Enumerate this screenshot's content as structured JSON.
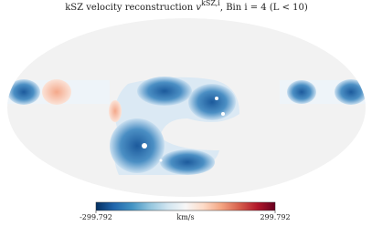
{
  "title": "kSZ velocity reconstruction",
  "title_symbol": "v",
  "title_superscript": "kSZ,i",
  "title_suffix": ", Bin i = 4 (L < 10)",
  "colorbar": {
    "label": "km/s",
    "lim": [
      -299.792,
      299.792
    ],
    "ticks": [
      -299.792,
      299.792
    ],
    "colors": [
      "#053061",
      "#2166ac",
      "#4393c3",
      "#92c5de",
      "#d1e5f0",
      "#f7f7f7",
      "#fddbc7",
      "#f4a582",
      "#d6604d",
      "#b2182b",
      "#67001f"
    ]
  }
}
